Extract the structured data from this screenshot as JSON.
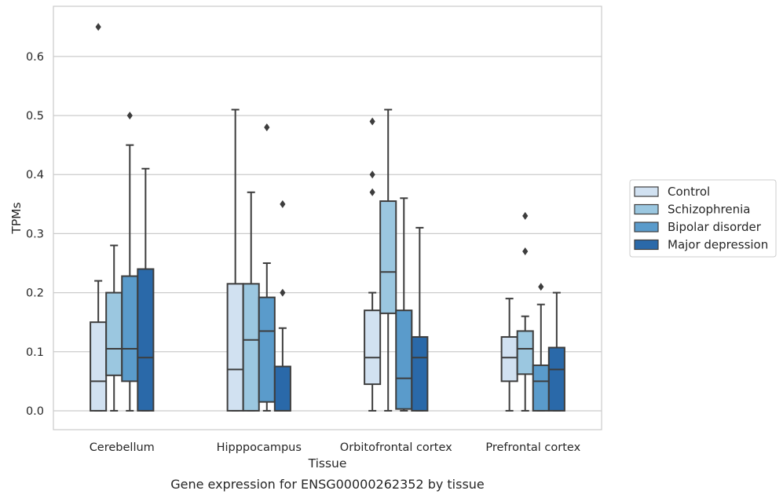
{
  "chart_data": {
    "type": "box",
    "title": "",
    "caption": "Gene expression for ENSG00000262352 by tissue",
    "xlabel": "Tissue",
    "ylabel": "TPMs",
    "ylim": [
      -0.032,
      0.685
    ],
    "yticks": [
      "0.0",
      "0.1",
      "0.2",
      "0.3",
      "0.4",
      "0.5",
      "0.6"
    ],
    "grid": "horizontal",
    "legend_position": "right",
    "categories": [
      "Cerebellum",
      "Hipppocampus",
      "Orbitofrontal cortex",
      "Prefrontal cortex"
    ],
    "series": [
      {
        "name": "Control",
        "color": "#d1e1f1",
        "boxes": [
          {
            "min": 0.0,
            "q1": 0.0,
            "median": 0.05,
            "q3": 0.15,
            "max": 0.22,
            "outliers": [
              0.65
            ]
          },
          {
            "min": 0.0,
            "q1": 0.0,
            "median": 0.07,
            "q3": 0.215,
            "max": 0.51,
            "outliers": []
          },
          {
            "min": 0.0,
            "q1": 0.045,
            "median": 0.09,
            "q3": 0.17,
            "max": 0.2,
            "outliers": [
              0.49,
              0.4,
              0.37
            ]
          },
          {
            "min": 0.0,
            "q1": 0.05,
            "median": 0.09,
            "q3": 0.125,
            "max": 0.19,
            "outliers": []
          }
        ]
      },
      {
        "name": "Schizophrenia",
        "color": "#9bc7e0",
        "boxes": [
          {
            "min": 0.0,
            "q1": 0.06,
            "median": 0.105,
            "q3": 0.2,
            "max": 0.28,
            "outliers": []
          },
          {
            "min": 0.0,
            "q1": 0.0,
            "median": 0.12,
            "q3": 0.215,
            "max": 0.37,
            "outliers": []
          },
          {
            "min": 0.0,
            "q1": 0.165,
            "median": 0.235,
            "q3": 0.355,
            "max": 0.51,
            "outliers": []
          },
          {
            "min": 0.0,
            "q1": 0.062,
            "median": 0.105,
            "q3": 0.135,
            "max": 0.16,
            "outliers": [
              0.33,
              0.27
            ]
          }
        ]
      },
      {
        "name": "Bipolar disorder",
        "color": "#5a9bcb",
        "boxes": [
          {
            "min": 0.0,
            "q1": 0.05,
            "median": 0.105,
            "q3": 0.228,
            "max": 0.45,
            "outliers": [
              0.5
            ]
          },
          {
            "min": 0.0,
            "q1": 0.015,
            "median": 0.135,
            "q3": 0.192,
            "max": 0.25,
            "outliers": [
              0.48
            ]
          },
          {
            "min": 0.0,
            "q1": 0.003,
            "median": 0.055,
            "q3": 0.17,
            "max": 0.36,
            "outliers": []
          },
          {
            "min": 0.0,
            "q1": 0.0,
            "median": 0.05,
            "q3": 0.077,
            "max": 0.18,
            "outliers": [
              0.21
            ]
          }
        ]
      },
      {
        "name": "Major depression",
        "color": "#2a69a9",
        "boxes": [
          {
            "min": 0.0,
            "q1": 0.0,
            "median": 0.09,
            "q3": 0.24,
            "max": 0.41,
            "outliers": []
          },
          {
            "min": 0.0,
            "q1": 0.0,
            "median": 0.0,
            "q3": 0.075,
            "max": 0.14,
            "outliers": [
              0.35,
              0.2
            ]
          },
          {
            "min": 0.0,
            "q1": 0.0,
            "median": 0.09,
            "q3": 0.125,
            "max": 0.31,
            "outliers": []
          },
          {
            "min": 0.0,
            "q1": 0.0,
            "median": 0.07,
            "q3": 0.107,
            "max": 0.2,
            "outliers": []
          }
        ]
      }
    ]
  }
}
